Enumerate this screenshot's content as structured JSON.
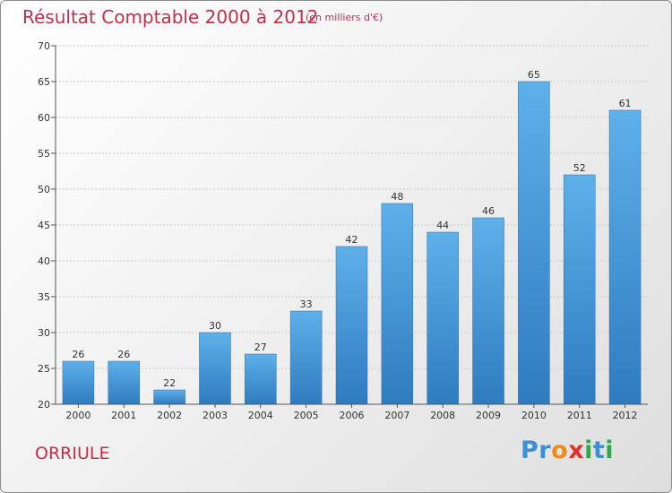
{
  "title": "Résultat Comptable 2000 à 2012",
  "subtitle": "(en milliers d'€)",
  "commune": "ORRIULE",
  "logo": {
    "letters": [
      "P",
      "r",
      "o",
      "x",
      "i",
      "t",
      "i"
    ],
    "colors": [
      "#3a8fd8",
      "#3a8fd8",
      "#f08a1c",
      "#e0302c",
      "#2fa84a",
      "#3a8fd8",
      "#2fa84a"
    ]
  },
  "colors": {
    "bar_top": "#5eb0ea",
    "bar_bottom": "#2f7bbf",
    "text_accent": "#c0304a"
  },
  "chart_data": {
    "type": "bar",
    "title": "Résultat Comptable 2000 à 2012",
    "subtitle": "(en milliers d'€)",
    "categories": [
      "2000",
      "2001",
      "2002",
      "2003",
      "2004",
      "2005",
      "2006",
      "2007",
      "2008",
      "2009",
      "2010",
      "2011",
      "2012"
    ],
    "values": [
      26,
      26,
      22,
      30,
      27,
      33,
      42,
      48,
      44,
      46,
      65,
      52,
      61
    ],
    "ylim": [
      20,
      70
    ],
    "yticks": [
      20,
      25,
      30,
      35,
      40,
      45,
      50,
      55,
      60,
      65,
      70
    ],
    "grid": true
  }
}
